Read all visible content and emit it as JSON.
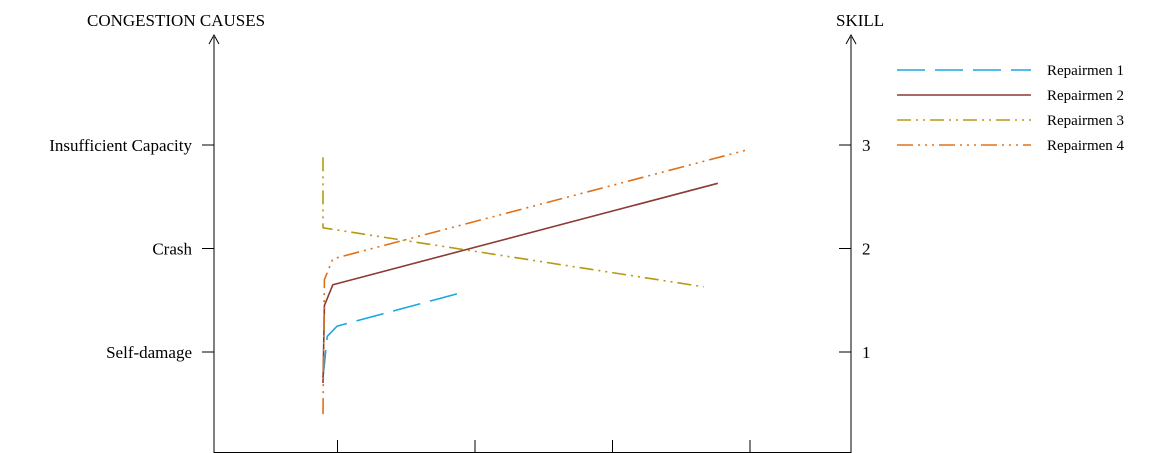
{
  "chart_data": {
    "type": "line",
    "left_axis": {
      "title": "CONGESTION CAUSES",
      "ticks": [
        {
          "value": 1,
          "label": "Self-damage"
        },
        {
          "value": 2,
          "label": "Crash"
        },
        {
          "value": 3,
          "label": "Insufficient Capacity"
        }
      ],
      "range": [
        0,
        4
      ]
    },
    "right_axis": {
      "title": "SKILL",
      "ticks": [
        {
          "value": 1,
          "label": "1"
        },
        {
          "value": 2,
          "label": "2"
        },
        {
          "value": 3,
          "label": "3"
        }
      ],
      "range": [
        0,
        4
      ]
    },
    "x_axis": {
      "ticks": [
        1,
        2,
        3,
        4
      ],
      "range": [
        0,
        4.7
      ],
      "tick_labels_shown": false
    },
    "legend_position": "top-right",
    "grid": false,
    "series": [
      {
        "name": "Repairmen 1",
        "color": "#1aa6e0",
        "dash": "long-dash",
        "points": [
          [
            1.0,
            0.75
          ],
          [
            1.03,
            1.15
          ],
          [
            1.1,
            1.25
          ],
          [
            2.0,
            1.58
          ]
        ]
      },
      {
        "name": "Repairmen 2",
        "color": "#8b3a35",
        "dash": "solid",
        "points": [
          [
            1.0,
            0.7
          ],
          [
            1.01,
            1.45
          ],
          [
            1.07,
            1.65
          ],
          [
            3.8,
            2.63
          ]
        ]
      },
      {
        "name": "Repairmen 3",
        "color": "#b59a10",
        "dash": "dash-dot-dot",
        "points": [
          [
            1.0,
            2.88
          ],
          [
            1.0,
            2.2
          ],
          [
            3.7,
            1.63
          ]
        ]
      },
      {
        "name": "Repairmen 4",
        "color": "#e07018",
        "dash": "dash-dot-dot-dot",
        "points": [
          [
            1.0,
            0.4
          ],
          [
            1.01,
            1.7
          ],
          [
            1.07,
            1.9
          ],
          [
            4.0,
            2.95
          ]
        ]
      }
    ]
  }
}
